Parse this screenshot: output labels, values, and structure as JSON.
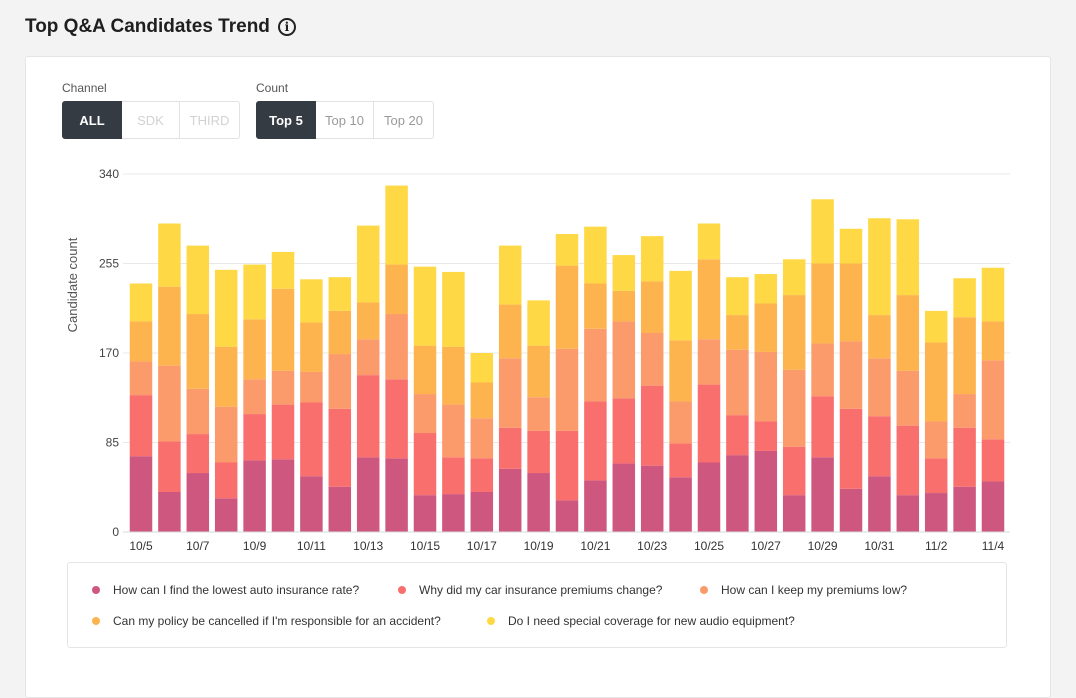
{
  "header": {
    "title": "Top Q&A Candidates Trend",
    "info_icon": "info-icon"
  },
  "filters": {
    "channel": {
      "label": "Channel",
      "options": [
        "ALL",
        "SDK",
        "THIRD"
      ],
      "selected": "ALL",
      "disabled": [
        "SDK",
        "THIRD"
      ]
    },
    "count": {
      "label": "Count",
      "options": [
        "Top 5",
        "Top 10",
        "Top 20"
      ],
      "selected": "Top 5"
    }
  },
  "colors": [
    "#cd577e",
    "#f96f6e",
    "#fb9a6a",
    "#fdb44f",
    "#fed945"
  ],
  "chart_data": {
    "type": "bar",
    "stacked": true,
    "xlabel": "",
    "ylabel": "Candidate count",
    "ylim": [
      0,
      340
    ],
    "yticks": [
      0,
      85,
      170,
      255,
      340
    ],
    "grid": true,
    "legend_position": "bottom",
    "categories": [
      "10/5",
      "10/6",
      "10/7",
      "10/8",
      "10/9",
      "10/10",
      "10/11",
      "10/12",
      "10/13",
      "10/14",
      "10/15",
      "10/16",
      "10/17",
      "10/18",
      "10/19",
      "10/20",
      "10/21",
      "10/22",
      "10/23",
      "10/24",
      "10/25",
      "10/26",
      "10/27",
      "10/28",
      "10/29",
      "10/30",
      "10/31",
      "11/1",
      "11/2",
      "11/3",
      "11/4"
    ],
    "xtick_labels": [
      "10/5",
      "10/7",
      "10/9",
      "10/11",
      "10/13",
      "10/15",
      "10/17",
      "10/19",
      "10/21",
      "10/23",
      "10/25",
      "10/27",
      "10/29",
      "10/31",
      "11/2",
      "11/4"
    ],
    "series": [
      {
        "name": "How can I find the lowest auto insurance rate?",
        "values": [
          72,
          38,
          56,
          32,
          68,
          69,
          53,
          43,
          71,
          70,
          35,
          36,
          38,
          60,
          56,
          30,
          49,
          65,
          63,
          52,
          66,
          73,
          77,
          35,
          71,
          41,
          53,
          35,
          37,
          43,
          48
        ]
      },
      {
        "name": "Why did my car insurance premiums change?",
        "values": [
          58,
          48,
          37,
          34,
          44,
          52,
          70,
          74,
          78,
          75,
          59,
          35,
          32,
          39,
          40,
          66,
          75,
          62,
          76,
          32,
          74,
          38,
          28,
          46,
          58,
          76,
          57,
          66,
          33,
          56,
          40
        ]
      },
      {
        "name": "How can I keep my premiums low?",
        "values": [
          32,
          72,
          43,
          53,
          33,
          32,
          29,
          52,
          34,
          62,
          37,
          50,
          38,
          66,
          32,
          78,
          69,
          73,
          50,
          40,
          43,
          62,
          66,
          73,
          50,
          64,
          55,
          52,
          35,
          32,
          75
        ]
      },
      {
        "name": "Can my policy be cancelled if I'm responsible for an accident?",
        "values": [
          38,
          75,
          71,
          57,
          57,
          78,
          47,
          41,
          35,
          47,
          46,
          55,
          34,
          51,
          49,
          79,
          43,
          29,
          49,
          58,
          76,
          33,
          46,
          71,
          76,
          74,
          41,
          72,
          75,
          73,
          37
        ]
      },
      {
        "name": "Do I need special coverage for new audio equipment?",
        "values": [
          36,
          60,
          65,
          73,
          52,
          35,
          41,
          32,
          73,
          75,
          75,
          71,
          28,
          56,
          43,
          30,
          54,
          34,
          43,
          66,
          34,
          36,
          28,
          34,
          61,
          33,
          92,
          72,
          30,
          37,
          51
        ]
      }
    ]
  }
}
